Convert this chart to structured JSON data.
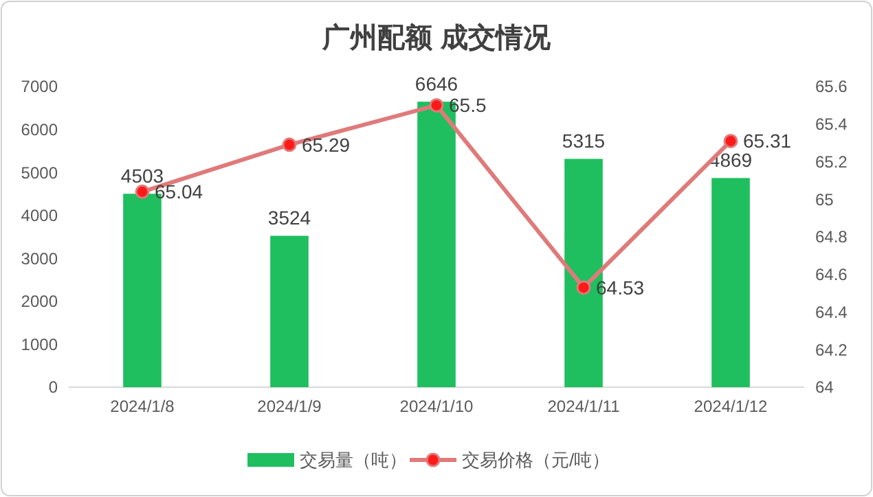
{
  "chart_data": {
    "type": "bar",
    "title": "广州配额 成交情况",
    "categories": [
      "2024/1/8",
      "2024/1/9",
      "2024/1/10",
      "2024/1/11",
      "2024/1/12"
    ],
    "series": [
      {
        "name": "交易量（吨）",
        "color": "#1fbf5f",
        "values": [
          4503,
          3524,
          6646,
          5315,
          4869
        ]
      },
      {
        "name": "交易价格（元/吨）",
        "type": "line",
        "axis": "y2",
        "color": "#e07a7a",
        "values": [
          65.04,
          65.29,
          65.5,
          64.53,
          65.31
        ]
      }
    ],
    "ylim": [
      0,
      7000
    ],
    "yticks": [
      0,
      1000,
      2000,
      3000,
      4000,
      5000,
      6000,
      7000
    ],
    "y2lim": [
      64,
      65.6
    ],
    "y2ticks": [
      64,
      64.2,
      64.4,
      64.6,
      64.8,
      65,
      65.2,
      65.4,
      65.6
    ],
    "data_labels": true,
    "legend": "bottom",
    "marker": "circle",
    "line_style": "solid"
  }
}
